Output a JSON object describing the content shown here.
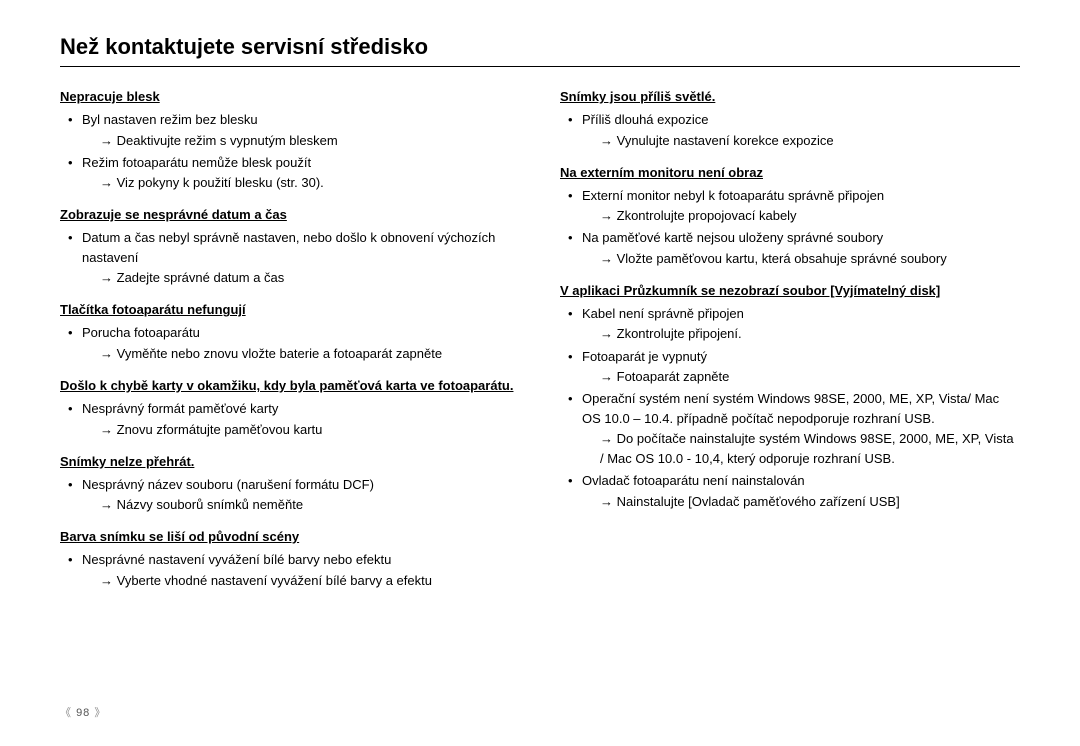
{
  "title": "Než kontaktujete servisní středisko",
  "page_number": "98",
  "left": {
    "s1": {
      "h": "Nepracuje blesk",
      "b1": "Byl nastaven režim bez blesku",
      "a1": "Deaktivujte režim s vypnutým bleskem",
      "b2": "Režim fotoaparátu nemůže blesk použít",
      "a2": "Viz pokyny k použití blesku (str. 30)."
    },
    "s2": {
      "h": "Zobrazuje se nesprávné datum a čas",
      "b1": "Datum a čas nebyl správně nastaven, nebo došlo k obnovení výchozích nastavení",
      "a1": "Zadejte správné datum a čas"
    },
    "s3": {
      "h": "Tlačítka fotoaparátu nefungují",
      "b1": "Porucha fotoaparátu",
      "a1": "Vyměňte nebo znovu vložte baterie a fotoaparát zapněte"
    },
    "s4": {
      "h": "Došlo k chybě karty v okamžiku, kdy byla paměťová karta ve fotoaparátu.",
      "b1": "Nesprávný formát paměťové karty",
      "a1": "Znovu zformátujte paměťovou kartu"
    },
    "s5": {
      "h": "Snímky nelze přehrát.",
      "b1": "Nesprávný název souboru (narušení formátu DCF)",
      "a1": "Názvy souborů snímků neměňte"
    },
    "s6": {
      "h": "Barva snímku se liší od původní scény",
      "b1": "Nesprávné nastavení vyvážení bílé barvy nebo efektu",
      "a1": "Vyberte vhodné nastavení vyvážení bílé barvy a efektu"
    }
  },
  "right": {
    "s1": {
      "h": "Snímky jsou příliš světlé.",
      "b1": "Příliš dlouhá expozice",
      "a1": "Vynulujte nastavení korekce expozice"
    },
    "s2": {
      "h": "Na externím monitoru není obraz",
      "b1": "Externí monitor nebyl k fotoaparátu správně připojen",
      "a1": "Zkontrolujte propojovací kabely",
      "b2": "Na paměťové kartě nejsou uloženy správné soubory",
      "a2": "Vložte paměťovou kartu, která obsahuje správné soubory"
    },
    "s3": {
      "h": "V aplikaci Průzkumník se nezobrazí soubor [Vyjímatelný disk]",
      "b1": "Kabel není správně připojen",
      "a1": "Zkontrolujte připojení.",
      "b2": "Fotoaparát je vypnutý",
      "a2": "Fotoaparát zapněte",
      "b3": "Operační systém není systém Windows 98SE, 2000, ME, XP, Vista/ Mac OS 10.0 – 10.4.  případně počítač nepodporuje rozhraní USB.",
      "a3": "Do počítače nainstalujte systém Windows 98SE, 2000, ME, XP, Vista / Mac OS 10.0 - 10,4, který odporuje rozhraní USB.",
      "b4": "Ovladač fotoaparátu není nainstalován",
      "a4": "Nainstalujte [Ovladač paměťového zařízení USB]"
    }
  }
}
